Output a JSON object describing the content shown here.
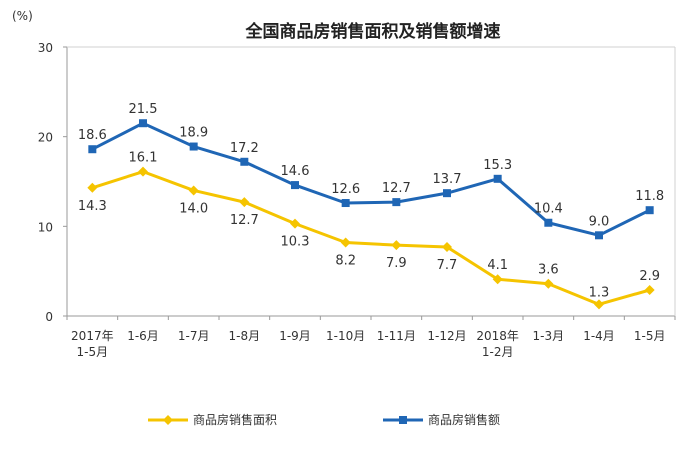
{
  "chart_data": {
    "type": "line",
    "title": "全国商品房销售面积及销售额增速",
    "unit": "(%)",
    "ylim": [
      0,
      30
    ],
    "yticks": [
      "0",
      "10",
      "20",
      "30"
    ],
    "grid": false,
    "legend_position": "bottom",
    "categories": [
      [
        "2017年",
        "1-5月"
      ],
      [
        "1-6月"
      ],
      [
        "1-7月"
      ],
      [
        "1-8月"
      ],
      [
        "1-9月"
      ],
      [
        "1-10月"
      ],
      [
        "1-11月"
      ],
      [
        "1-12月"
      ],
      [
        "2018年",
        "1-2月"
      ],
      [
        "1-3月"
      ],
      [
        "1-4月"
      ],
      [
        "1-5月"
      ]
    ],
    "series": [
      {
        "name": "商品房销售面积",
        "color": "#F5C400",
        "marker": "diamond",
        "values": [
          14.3,
          16.1,
          14.0,
          12.7,
          10.3,
          8.2,
          7.9,
          7.7,
          4.1,
          3.6,
          1.3,
          2.9
        ],
        "labels": [
          "14.3",
          "16.1",
          "14.0",
          "12.7",
          "10.3",
          "8.2",
          "7.9",
          "7.7",
          "4.1",
          "3.6",
          "1.3",
          "2.9"
        ]
      },
      {
        "name": "商品房销售额",
        "color": "#1F66B5",
        "marker": "square",
        "values": [
          18.6,
          21.5,
          18.9,
          17.2,
          14.6,
          12.6,
          12.7,
          13.7,
          15.3,
          10.4,
          9.0,
          11.8
        ],
        "labels": [
          "18.6",
          "21.5",
          "18.9",
          "17.2",
          "14.6",
          "12.6",
          "12.7",
          "13.7",
          "15.3",
          "10.4",
          "9.0",
          "11.8"
        ]
      }
    ]
  }
}
